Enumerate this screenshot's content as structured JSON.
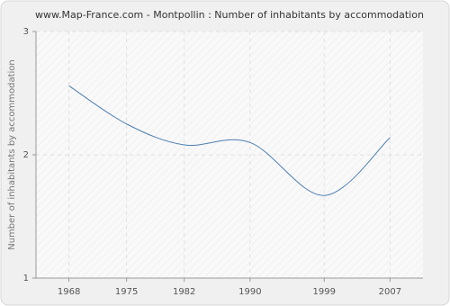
{
  "chart_data": {
    "type": "line",
    "title": "www.Map-France.com - Montpollin : Number of inhabitants by accommodation",
    "y_label": "Number of inhabitants by accommodation",
    "x": [
      1968,
      1975,
      1982,
      1990,
      1999,
      2007
    ],
    "series": [
      {
        "name": "Montpollin",
        "color": "#4d7fb0",
        "values": [
          2.56,
          2.25,
          2.08,
          2.1,
          1.67,
          2.14
        ]
      }
    ],
    "xlim": [
      1964,
      2011
    ],
    "xticks": [
      1968,
      1975,
      1982,
      1990,
      1999,
      2007
    ],
    "ylim": [
      1,
      3
    ],
    "yticks": [
      1,
      2,
      3
    ],
    "grid": true
  }
}
